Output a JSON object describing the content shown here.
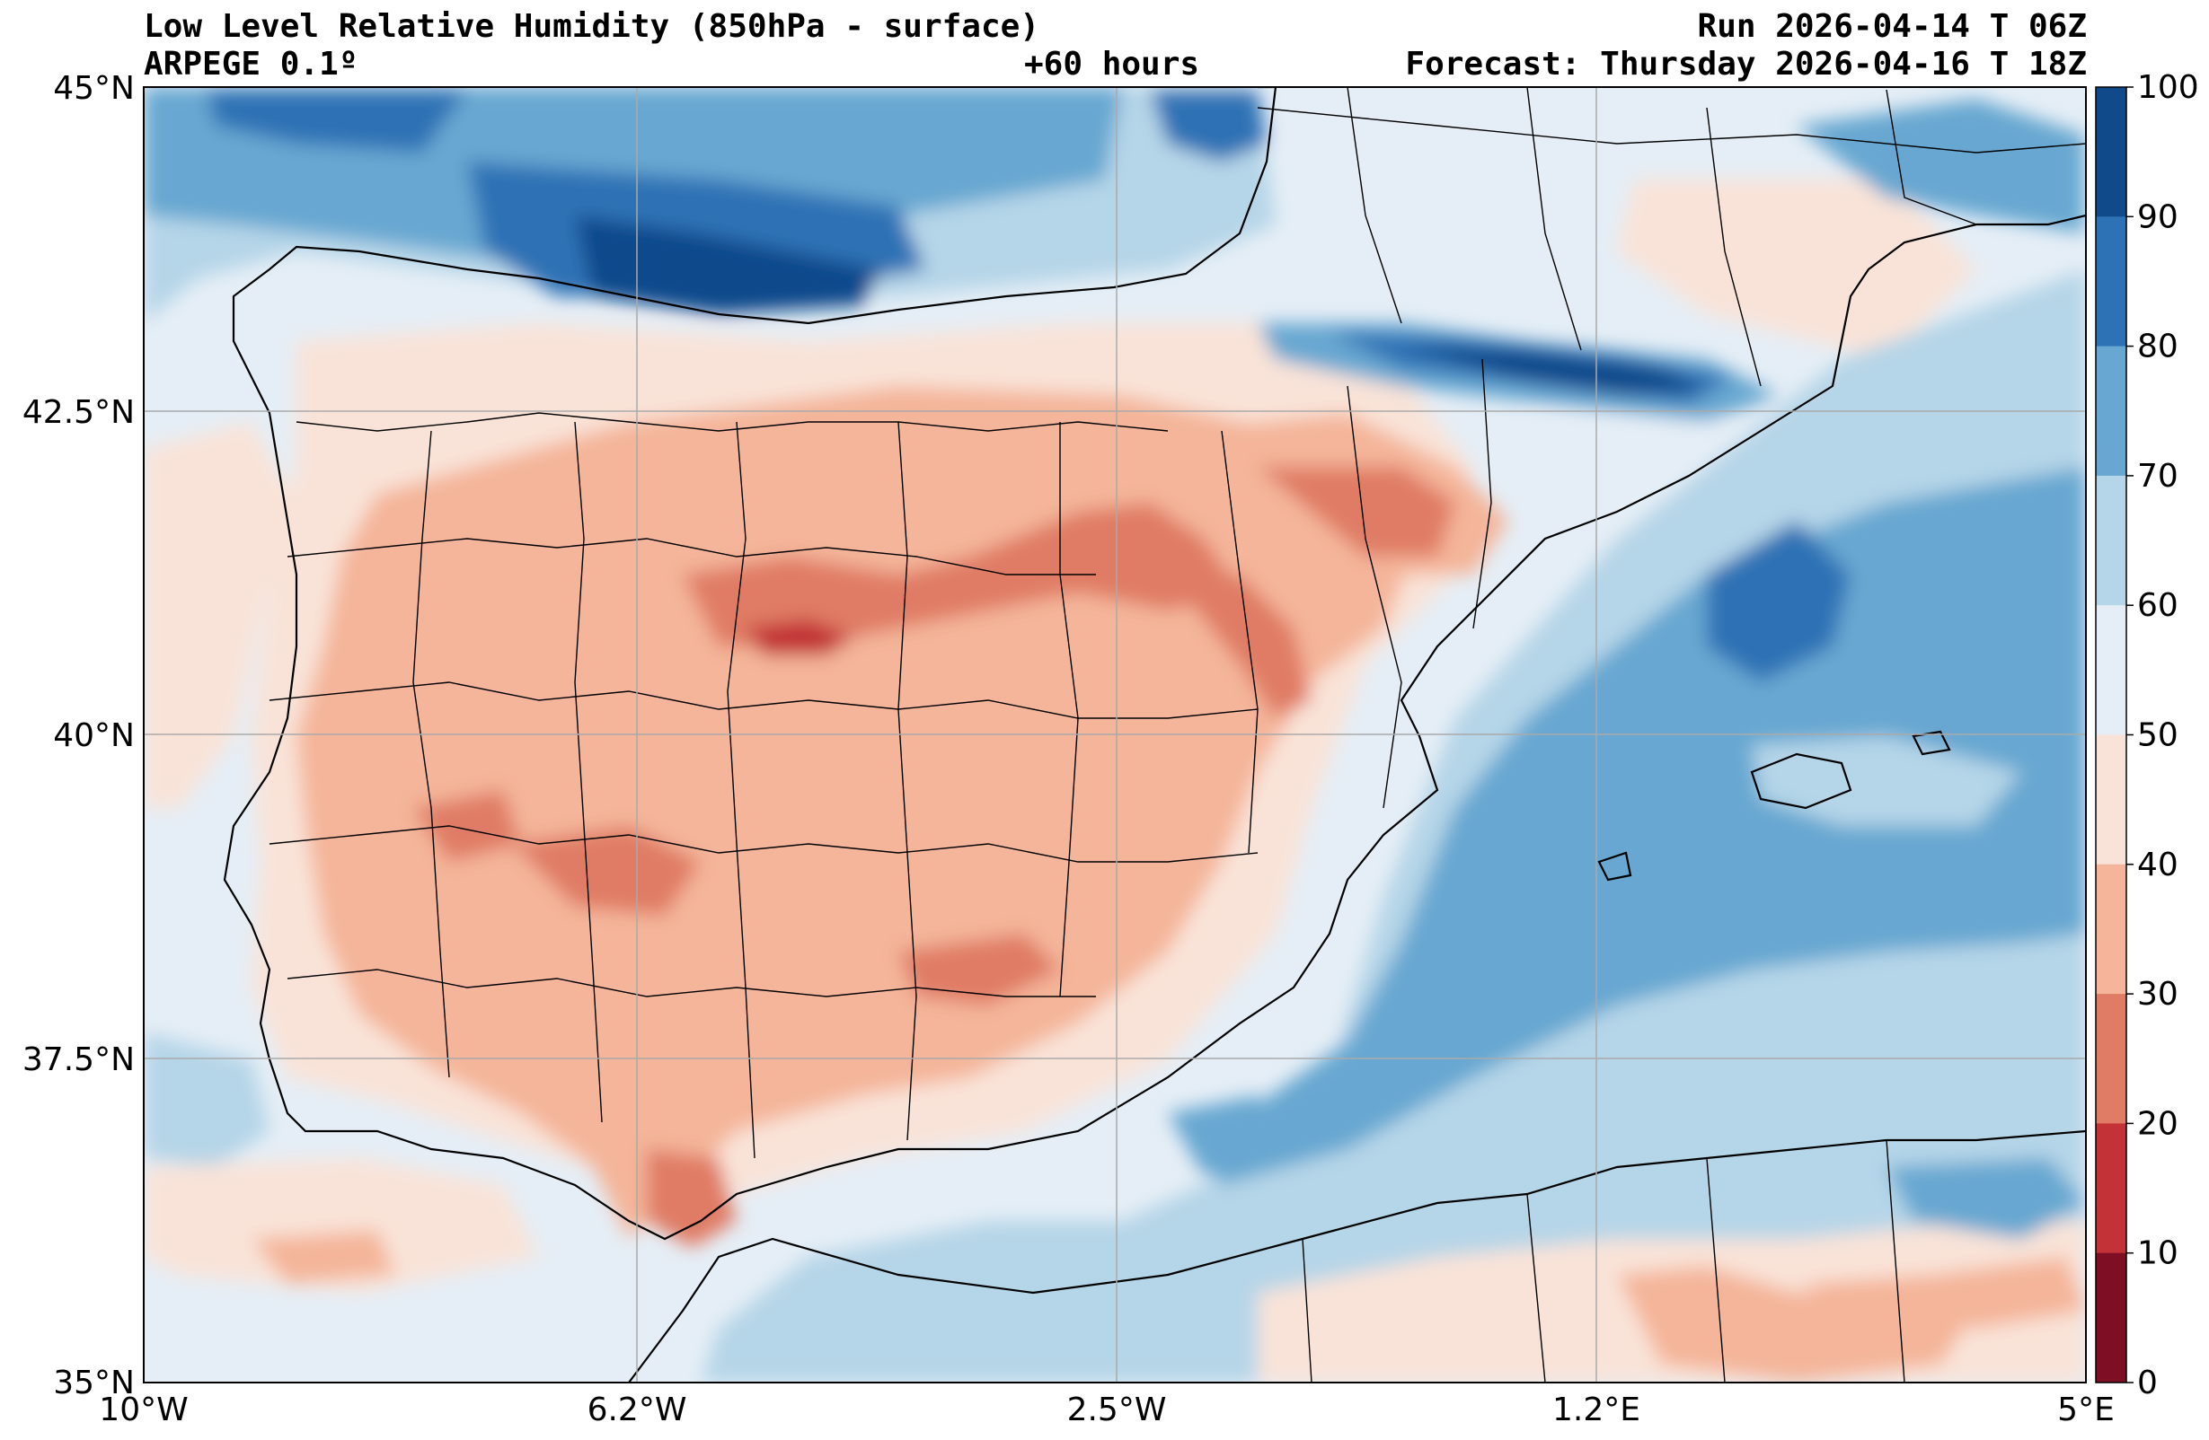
{
  "header": {
    "title": "Low Level Relative Humidity (850hPa - surface)",
    "model": "ARPEGE 0.1º",
    "lead_time": "+60 hours",
    "run": "Run 2026-04-14 T 06Z",
    "forecast": "Forecast: Thursday 2026-04-16 T 18Z"
  },
  "map": {
    "variable": "relative humidity (%)",
    "lat_range": [
      35,
      45
    ],
    "lon_range": [
      -10,
      5
    ],
    "x_ticks": [
      "10°W",
      "6.2°W",
      "2.5°W",
      "1.2°E",
      "5°E"
    ],
    "y_ticks": [
      "45°N",
      "42.5°N",
      "40°N",
      "37.5°N",
      "35°N"
    ],
    "regions": {
      "ocean_atlantic": "50-60%",
      "bay_of_biscay": "70-90%",
      "pyrenees": "80-100%",
      "iberian_interior": "30-50%",
      "central_maximum_dryness": "10-20%",
      "mediterranean_sea": "60-80%",
      "north_africa": "40-50%"
    }
  },
  "colorbar": {
    "levels": [
      "100",
      "90",
      "80",
      "70",
      "60",
      "50",
      "40",
      "30",
      "20",
      "10",
      "0"
    ],
    "colors": [
      "#114a8b",
      "#2d72b5",
      "#67a7d1",
      "#b5d5e8",
      "#e5eef6",
      "#f9e3d8",
      "#f4b59a",
      "#e07b65",
      "#c23236",
      "#7e0e23"
    ]
  }
}
